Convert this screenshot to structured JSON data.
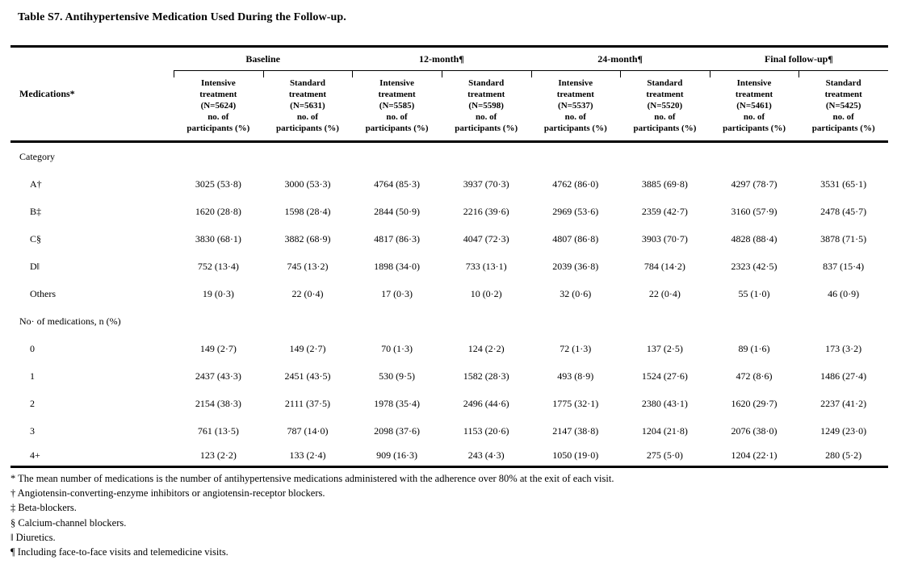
{
  "title": "Table S7. Antihypertensive Medication Used During the Follow-up.",
  "table": {
    "stub_header": "Medications*",
    "groups": [
      "Baseline",
      "12-month¶",
      "24-month¶",
      "Final follow-up¶"
    ],
    "col_headers": [
      "Intensive\ntreatment\n(N=5624)\nno. of\nparticipants (%)",
      "Standard\ntreatment\n(N=5631)\nno. of\nparticipants (%)",
      "Intensive\ntreatment\n(N=5585)\nno. of\nparticipants (%)",
      "Standard\ntreatment\n(N=5598)\nno. of\nparticipants (%)",
      "Intensive\ntreatment\n(N=5537)\nno. of\nparticipants (%)",
      "Standard\ntreatment\n(N=5520)\nno. of\nparticipants (%)",
      "Intensive\ntreatment\n(N=5461)\nno. of\nparticipants (%)",
      "Standard\ntreatment\n(N=5425)\nno. of\nparticipants (%)"
    ],
    "rows": [
      {
        "label": "Category",
        "type": "section",
        "values": []
      },
      {
        "label": "A†",
        "type": "item",
        "values": [
          "3025 (53·8)",
          "3000 (53·3)",
          "4764 (85·3)",
          "3937 (70·3)",
          "4762 (86·0)",
          "3885 (69·8)",
          "4297 (78·7)",
          "3531 (65·1)"
        ]
      },
      {
        "label": "B‡",
        "type": "item",
        "values": [
          "1620 (28·8)",
          "1598 (28·4)",
          "2844 (50·9)",
          "2216 (39·6)",
          "2969 (53·6)",
          "2359 (42·7)",
          "3160 (57·9)",
          "2478 (45·7)"
        ]
      },
      {
        "label": "C§",
        "type": "item",
        "values": [
          "3830 (68·1)",
          "3882 (68·9)",
          "4817 (86·3)",
          "4047 (72·3)",
          "4807 (86·8)",
          "3903 (70·7)",
          "4828 (88·4)",
          "3878 (71·5)"
        ]
      },
      {
        "label": "D‖",
        "type": "item",
        "values": [
          "752 (13·4)",
          "745 (13·2)",
          "1898 (34·0)",
          "733 (13·1)",
          "2039 (36·8)",
          "784 (14·2)",
          "2323 (42·5)",
          "837 (15·4)"
        ]
      },
      {
        "label": "Others",
        "type": "item",
        "values": [
          "19 (0·3)",
          "22 (0·4)",
          "17 (0·3)",
          "10 (0·2)",
          "32 (0·6)",
          "22 (0·4)",
          "55 (1·0)",
          "46 (0·9)"
        ]
      },
      {
        "label": "No· of medications, n (%)",
        "type": "section",
        "values": []
      },
      {
        "label": "0",
        "type": "item",
        "values": [
          "149 (2·7)",
          "149 (2·7)",
          "70 (1·3)",
          "124 (2·2)",
          "72 (1·3)",
          "137 (2·5)",
          "89 (1·6)",
          "173 (3·2)"
        ]
      },
      {
        "label": "1",
        "type": "item",
        "values": [
          "2437 (43·3)",
          "2451 (43·5)",
          "530 (9·5)",
          "1582 (28·3)",
          "493 (8·9)",
          "1524 (27·6)",
          "472 (8·6)",
          "1486 (27·4)"
        ]
      },
      {
        "label": "2",
        "type": "item",
        "values": [
          "2154 (38·3)",
          "2111 (37·5)",
          "1978 (35·4)",
          "2496 (44·6)",
          "1775 (32·1)",
          "2380 (43·1)",
          "1620 (29·7)",
          "2237 (41·2)"
        ]
      },
      {
        "label": "3",
        "type": "item",
        "values": [
          "761 (13·5)",
          "787 (14·0)",
          "2098 (37·6)",
          "1153 (20·6)",
          "2147 (38·8)",
          "1204 (21·8)",
          "2076 (38·0)",
          "1249 (23·0)"
        ]
      },
      {
        "label": "4+",
        "type": "item",
        "values": [
          "123 (2·2)",
          "133 (2·4)",
          "909 (16·3)",
          "243 (4·3)",
          "1050 (19·0)",
          "275 (5·0)",
          "1204 (22·1)",
          "280 (5·2)"
        ]
      }
    ]
  },
  "footnotes": [
    "* The mean number of medications is the number of antihypertensive medications administered with the adherence over 80% at the exit of each visit.",
    "† Angiotensin-converting-enzyme inhibitors or angiotensin-receptor blockers.",
    "‡ Beta-blockers.",
    "§ Calcium-channel blockers.",
    "‖ Diuretics.",
    "¶ Including face-to-face visits and telemedicine visits."
  ]
}
